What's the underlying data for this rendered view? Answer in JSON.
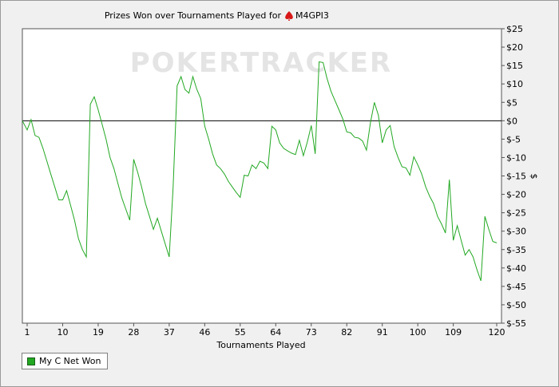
{
  "chart_data": {
    "type": "line",
    "title": "Prizes Won over Tournaments Played for",
    "player": "M4GPI3",
    "xlabel": "Tournaments Played",
    "ylabel": "$",
    "watermark": "POKERTRACKER",
    "xlim": [
      0,
      121
    ],
    "ylim": [
      -55,
      25
    ],
    "x_ticks": [
      1,
      10,
      19,
      28,
      37,
      46,
      55,
      64,
      73,
      82,
      91,
      100,
      109,
      120
    ],
    "y_ticks": [
      25,
      20,
      15,
      10,
      5,
      0,
      -5,
      -10,
      -15,
      -20,
      -25,
      -30,
      -35,
      -40,
      -45,
      -50,
      -55
    ],
    "y_tick_labels": [
      "$25",
      "$20",
      "$15",
      "$10",
      "$5",
      "$0",
      "$-5",
      "$-10",
      "$-15",
      "$-20",
      "$-25",
      "$-30",
      "$-35",
      "$-40",
      "$-45",
      "$-50",
      "$-55"
    ],
    "grid": false,
    "legend_position": "bottom-left",
    "series": [
      {
        "name": "My C Net Won",
        "color": "#22a822",
        "points": [
          [
            0,
            0
          ],
          [
            1,
            -2.5
          ],
          [
            2,
            0.3
          ],
          [
            3,
            -4
          ],
          [
            4,
            -4.5
          ],
          [
            5,
            -7.5
          ],
          [
            6,
            -11
          ],
          [
            7,
            -14.5
          ],
          [
            8,
            -18
          ],
          [
            9,
            -21.5
          ],
          [
            10,
            -21.5
          ],
          [
            11,
            -19
          ],
          [
            12,
            -23
          ],
          [
            13,
            -27
          ],
          [
            14,
            -32
          ],
          [
            15,
            -35
          ],
          [
            16,
            -37
          ],
          [
            17,
            4.5
          ],
          [
            18,
            6.5
          ],
          [
            19,
            3
          ],
          [
            20,
            -1
          ],
          [
            21,
            -5
          ],
          [
            22,
            -10
          ],
          [
            23,
            -13
          ],
          [
            24,
            -17
          ],
          [
            25,
            -21
          ],
          [
            26,
            -24
          ],
          [
            27,
            -27
          ],
          [
            28,
            -10.5
          ],
          [
            29,
            -14
          ],
          [
            30,
            -18
          ],
          [
            31,
            -22.5
          ],
          [
            32,
            -26
          ],
          [
            33,
            -29.5
          ],
          [
            34,
            -26.5
          ],
          [
            35,
            -30
          ],
          [
            36,
            -33.5
          ],
          [
            37,
            -37
          ],
          [
            38,
            -18
          ],
          [
            39,
            9.5
          ],
          [
            40,
            12
          ],
          [
            41,
            8.5
          ],
          [
            42,
            7.5
          ],
          [
            43,
            12
          ],
          [
            44,
            8.5
          ],
          [
            45,
            6
          ],
          [
            46,
            -1.5
          ],
          [
            47,
            -5
          ],
          [
            48,
            -9
          ],
          [
            49,
            -12
          ],
          [
            50,
            -13
          ],
          [
            51,
            -14.5
          ],
          [
            52,
            -16.5
          ],
          [
            53,
            -18
          ],
          [
            54,
            -19.5
          ],
          [
            55,
            -20.8
          ],
          [
            56,
            -14.8
          ],
          [
            57,
            -15
          ],
          [
            58,
            -12
          ],
          [
            59,
            -13
          ],
          [
            60,
            -11
          ],
          [
            61,
            -11.5
          ],
          [
            62,
            -13
          ],
          [
            63,
            -1.5
          ],
          [
            64,
            -2.5
          ],
          [
            65,
            -6
          ],
          [
            66,
            -7.5
          ],
          [
            67,
            -8.2
          ],
          [
            68,
            -8.8
          ],
          [
            69,
            -9.2
          ],
          [
            70,
            -5.3
          ],
          [
            71,
            -9.5
          ],
          [
            72,
            -5.8
          ],
          [
            73,
            -1.3
          ],
          [
            74,
            -9
          ],
          [
            75,
            16
          ],
          [
            76,
            15.8
          ],
          [
            77,
            11.5
          ],
          [
            78,
            8
          ],
          [
            79,
            5.5
          ],
          [
            80,
            3
          ],
          [
            81,
            0.5
          ],
          [
            82,
            -3
          ],
          [
            83,
            -3.3
          ],
          [
            84,
            -4.5
          ],
          [
            85,
            -4.7
          ],
          [
            86,
            -5.5
          ],
          [
            87,
            -8
          ],
          [
            88,
            -0.5
          ],
          [
            89,
            5
          ],
          [
            90,
            1.5
          ],
          [
            91,
            -6
          ],
          [
            92,
            -2.5
          ],
          [
            93,
            -1.3
          ],
          [
            94,
            -7
          ],
          [
            95,
            -10
          ],
          [
            96,
            -12.5
          ],
          [
            97,
            -12.8
          ],
          [
            98,
            -14.8
          ],
          [
            99,
            -9.8
          ],
          [
            100,
            -12
          ],
          [
            101,
            -14.5
          ],
          [
            102,
            -18
          ],
          [
            103,
            -20.5
          ],
          [
            104,
            -22.5
          ],
          [
            105,
            -26
          ],
          [
            106,
            -28
          ],
          [
            107,
            -30.5
          ],
          [
            108,
            -16
          ],
          [
            109,
            -32.5
          ],
          [
            110,
            -28.5
          ],
          [
            111,
            -32.5
          ],
          [
            112,
            -36.5
          ],
          [
            113,
            -35
          ],
          [
            114,
            -37
          ],
          [
            115,
            -40.5
          ],
          [
            116,
            -43.5
          ],
          [
            117,
            -26
          ],
          [
            118,
            -29.5
          ],
          [
            119,
            -32.8
          ],
          [
            120,
            -33.2
          ]
        ]
      }
    ]
  }
}
